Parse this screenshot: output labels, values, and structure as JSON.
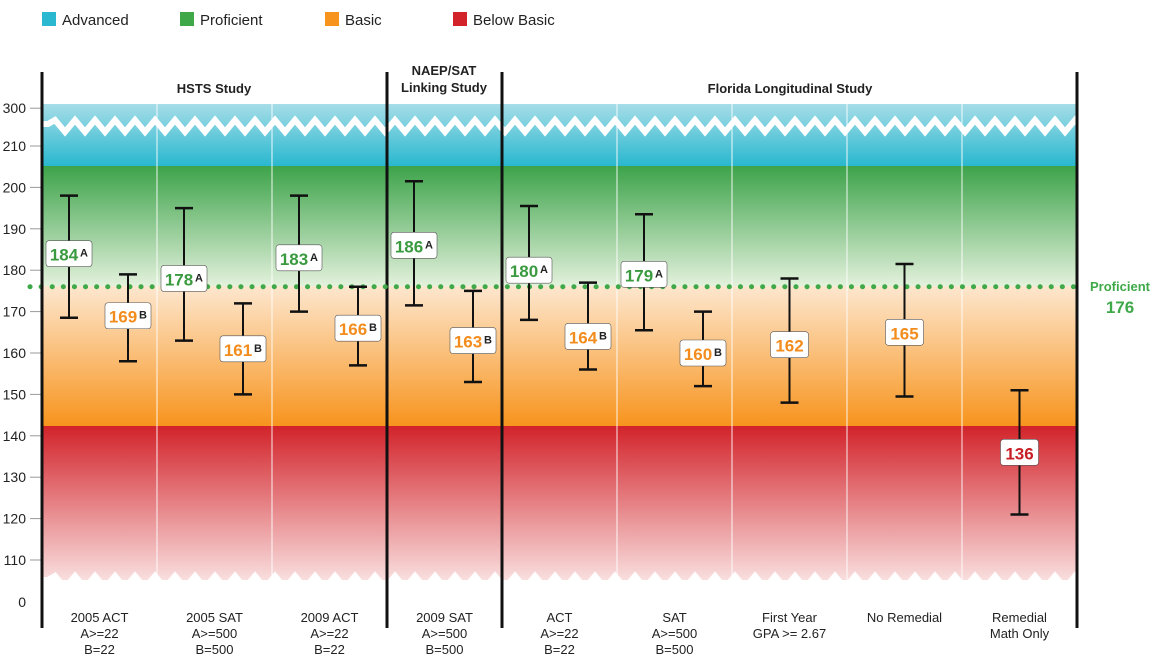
{
  "legend": [
    {
      "label": "Advanced",
      "color": "#29b8cf"
    },
    {
      "label": "Proficient",
      "color": "#3fa94a"
    },
    {
      "label": "Basic",
      "color": "#f7941d"
    },
    {
      "label": "Below Basic",
      "color": "#d2232a"
    }
  ],
  "colors": {
    "advanced": "#29b8cf",
    "proficient": "#3fa94a",
    "basic": "#f7941d",
    "below_basic": "#d2232a",
    "proficient_text": "#3a9a3f",
    "basic_text": "#f28c1c",
    "below_text": "#c81e25"
  },
  "studies": [
    {
      "lines": [
        "HSTS Study"
      ]
    },
    {
      "lines": [
        "NAEP/SAT",
        "Linking Study"
      ]
    },
    {
      "lines": [
        "Florida Longitudinal Study"
      ]
    }
  ],
  "chart_data": {
    "type": "errorbar",
    "y_ticks": [
      "300",
      "210",
      "200",
      "190",
      "180",
      "170",
      "160",
      "150",
      "140",
      "130",
      "120",
      "110",
      "0"
    ],
    "axis_breaks": [
      "between 0 and 110",
      "between 210 and 300"
    ],
    "ylim": [
      0,
      300
    ],
    "bands": [
      {
        "name": "Advanced",
        "from": 205,
        "to": 300
      },
      {
        "name": "Proficient",
        "from": 176,
        "to": 205
      },
      {
        "name": "Basic",
        "from": 142,
        "to": 176
      },
      {
        "name": "Below Basic",
        "from": 0,
        "to": 142
      }
    ],
    "reference_line": {
      "label": "Proficient",
      "value": "176"
    },
    "categories": [
      {
        "lines": [
          "2005 ACT",
          "A>=22",
          "B=22"
        ],
        "points": [
          {
            "value": "184",
            "letter": "A",
            "low": 168.5,
            "high": 198,
            "level": "proficient"
          },
          {
            "value": "169",
            "letter": "B",
            "low": 158,
            "high": 179,
            "level": "basic"
          }
        ]
      },
      {
        "lines": [
          "2005 SAT",
          "A>=500",
          "B=500"
        ],
        "points": [
          {
            "value": "178",
            "letter": "A",
            "low": 163,
            "high": 195,
            "level": "proficient"
          },
          {
            "value": "161",
            "letter": "B",
            "low": 150,
            "high": 172,
            "level": "basic"
          }
        ]
      },
      {
        "lines": [
          "2009 ACT",
          "A>=22",
          "B=22"
        ],
        "points": [
          {
            "value": "183",
            "letter": "A",
            "low": 170,
            "high": 198,
            "level": "proficient"
          },
          {
            "value": "166",
            "letter": "B",
            "low": 157,
            "high": 176,
            "level": "basic"
          }
        ]
      },
      {
        "lines": [
          "2009 SAT",
          "A>=500",
          "B=500"
        ],
        "points": [
          {
            "value": "186",
            "letter": "A",
            "low": 171.5,
            "high": 201.5,
            "level": "proficient"
          },
          {
            "value": "163",
            "letter": "B",
            "low": 153,
            "high": 175,
            "level": "basic"
          }
        ]
      },
      {
        "lines": [
          "ACT",
          "A>=22",
          "B=22"
        ],
        "points": [
          {
            "value": "180",
            "letter": "A",
            "low": 168,
            "high": 195.5,
            "level": "proficient"
          },
          {
            "value": "164",
            "letter": "B",
            "low": 156,
            "high": 177,
            "level": "basic"
          }
        ]
      },
      {
        "lines": [
          "SAT",
          "A>=500",
          "B=500"
        ],
        "points": [
          {
            "value": "179",
            "letter": "A",
            "low": 165.5,
            "high": 193.5,
            "level": "proficient"
          },
          {
            "value": "160",
            "letter": "B",
            "low": 152,
            "high": 170,
            "level": "basic"
          }
        ]
      },
      {
        "lines": [
          "First Year",
          "GPA >= 2.67"
        ],
        "points": [
          {
            "value": "162",
            "letter": "",
            "low": 148,
            "high": 178,
            "level": "basic"
          }
        ]
      },
      {
        "lines": [
          "No Remedial",
          ""
        ],
        "points": [
          {
            "value": "165",
            "letter": "",
            "low": 149.5,
            "high": 181.5,
            "level": "basic"
          }
        ]
      },
      {
        "lines": [
          "Remedial",
          "Math Only"
        ],
        "points": [
          {
            "value": "136",
            "letter": "",
            "low": 121,
            "high": 151,
            "level": "below"
          }
        ]
      }
    ]
  }
}
